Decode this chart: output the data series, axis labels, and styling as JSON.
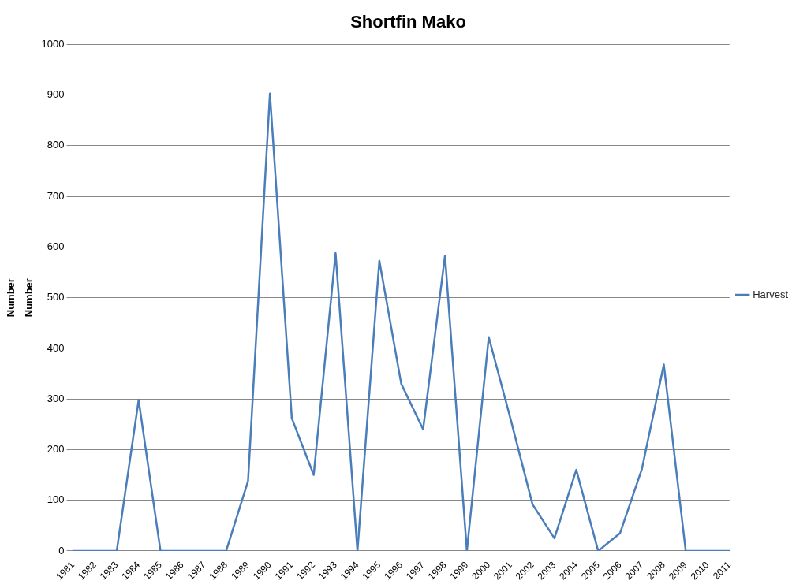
{
  "chart_data": {
    "type": "line",
    "title": "Shortfin Mako",
    "ylabel": "Number",
    "annotations": [
      "Number"
    ],
    "categories": [
      "1981",
      "1982",
      "1983",
      "1984",
      "1985",
      "1986",
      "1987",
      "1988",
      "1989",
      "1990",
      "1991",
      "1992",
      "1993",
      "1994",
      "1995",
      "1996",
      "1997",
      "1998",
      "1999",
      "2000",
      "2001",
      "2002",
      "2003",
      "2004",
      "2005",
      "2006",
      "2007",
      "2008",
      "2009",
      "2010",
      "2011"
    ],
    "series": [
      {
        "name": "Harvest",
        "color": "#4a7ebb",
        "values": [
          0,
          0,
          0,
          298,
          0,
          0,
          0,
          0,
          138,
          903,
          262,
          150,
          588,
          0,
          573,
          330,
          240,
          583,
          0,
          422,
          260,
          92,
          25,
          160,
          0,
          35,
          162,
          368,
          0,
          0,
          0
        ]
      }
    ],
    "ylim": [
      0,
      1000
    ],
    "yticks": [
      0,
      100,
      200,
      300,
      400,
      500,
      600,
      700,
      800,
      900,
      1000
    ],
    "grid": "y",
    "legend": "right",
    "marker": "none",
    "line_style": "solid"
  }
}
